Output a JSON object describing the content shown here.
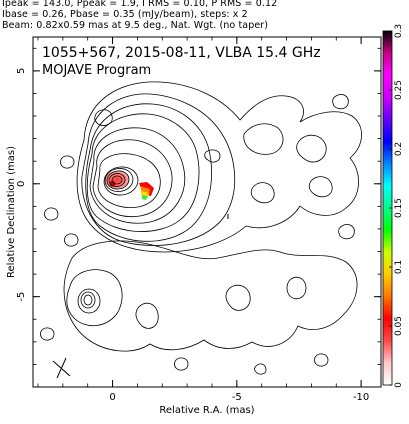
{
  "header": {
    "line1": "Ipeak = 143.0, Ppeak = 1.9, I RMS = 0.10, P RMS = 0.12",
    "line2": "Ibase = 0.26, Pbase = 0.35 (mJy/beam), steps: x 2",
    "line3": "Beam: 0.82x0.59 mas at 9.5 deg., Nat. Wgt. (no taper)"
  },
  "chart_data": {
    "type": "contour",
    "title": "1055+567, 2015-08-11, VLBA 15.4 GHz",
    "subtitle": "MOJAVE Program",
    "xlabel": "Relative R.A. (mas)",
    "ylabel": "Relative Declination (mas)",
    "xlim": [
      3.2,
      -10.8
    ],
    "ylim": [
      -9.0,
      6.5
    ],
    "x_ticks": [
      "0",
      "-5",
      "-10"
    ],
    "y_ticks": [
      "5",
      "0",
      "-5"
    ],
    "x_tick_values": [
      0,
      -5,
      -10
    ],
    "y_tick_values": [
      5,
      0,
      -5
    ],
    "colorbar": {
      "range": [
        0,
        0.3
      ],
      "ticks": [
        "0",
        "0.05",
        "0.1",
        "0.15",
        "0.2",
        "0.25",
        "0.3"
      ],
      "tick_values": [
        0,
        0.05,
        0.1,
        0.15,
        0.2,
        0.25,
        0.3
      ],
      "colors": [
        "#ffffff",
        "#ffc8c8",
        "#ff4a4a",
        "#ff0000",
        "#ff7700",
        "#ffcc00",
        "#ccff00",
        "#00ff00",
        "#00ff88",
        "#00ffff",
        "#0088ff",
        "#0000ff",
        "#6600ff",
        "#cc00ff",
        "#ff00ff",
        "#cc0088",
        "#000000"
      ]
    },
    "core": {
      "x": 0,
      "y": 0
    },
    "beam": {
      "major_mas": 0.82,
      "minor_mas": 0.59,
      "pa_deg": 9.5
    },
    "colors": {
      "contour": "#000000",
      "core_fill": "#ff7f7f",
      "pol_red": "#ff0000",
      "pol_orange": "#ff8800",
      "pol_yellow": "#ffdd00",
      "pol_green": "#33ee33"
    }
  }
}
